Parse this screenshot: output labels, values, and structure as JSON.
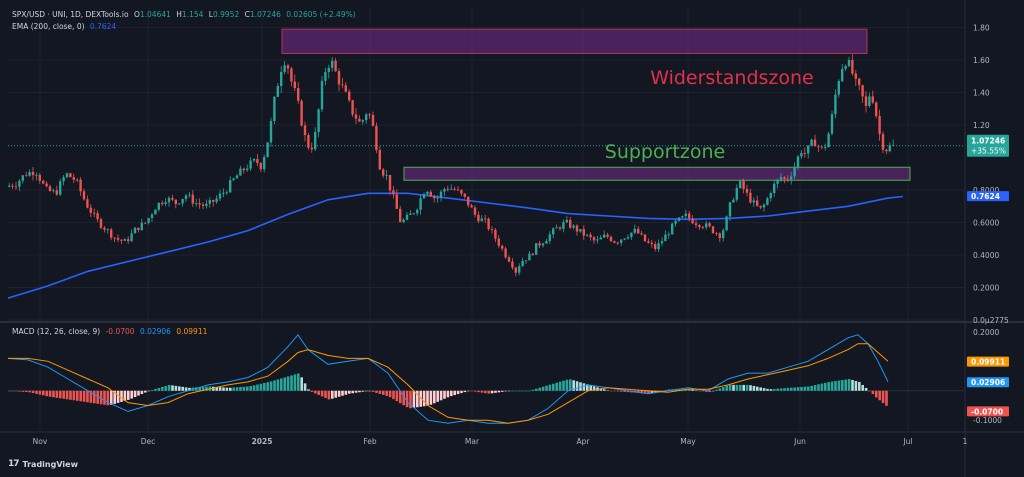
{
  "header": {
    "symbol": "SPX/USD · UNI, 1D, DEXTools.io",
    "ohlc": {
      "o_label": "O",
      "o": "1.04641",
      "h_label": "H",
      "h": "1.154",
      "l_label": "L",
      "l": "0.9952",
      "c_label": "C",
      "c": "1.07246",
      "change": "0.02605 (+2.49%)"
    },
    "ema_label": "EMA (200, close, 0)",
    "ema_value": "0.7624"
  },
  "macd_legend": {
    "label": "MACD (12, 26, close, 9)",
    "hist": "-0.0700",
    "macd": "0.02906",
    "signal": "0.09911"
  },
  "brand": {
    "name": "TradingView",
    "mark": "17"
  },
  "colors": {
    "bg": "#131722",
    "up": "#26a69a",
    "down": "#ef5350",
    "ema": "#2962ff",
    "macd": "#2196f3",
    "signal": "#ff9800",
    "resistance": "#b2325a",
    "support": "#4caf50",
    "zone_fill": "#7a2d8c"
  },
  "chart_data": {
    "type": "candlestick",
    "title": "",
    "price_axis": {
      "ticks": [
        "1.80",
        "1.60",
        "1.40",
        "1.20",
        "0.8000",
        "0.6000",
        "0.4000",
        "0.2000",
        "0.0µ2775"
      ],
      "range": [
        0.0,
        1.92
      ]
    },
    "time_axis": {
      "ticks": [
        "Nov",
        "Dec",
        "2025",
        "Feb",
        "Mar",
        "Apr",
        "May",
        "Jun",
        "Jul",
        "1"
      ]
    },
    "last_price": "1.07246",
    "last_change_pct": "+35.55%",
    "ema200_last": "0.7624",
    "ema200_path": [
      [
        0,
        0.135
      ],
      [
        40,
        0.21
      ],
      [
        80,
        0.3
      ],
      [
        120,
        0.36
      ],
      [
        160,
        0.42
      ],
      [
        200,
        0.48
      ],
      [
        240,
        0.55
      ],
      [
        280,
        0.65
      ],
      [
        320,
        0.74
      ],
      [
        360,
        0.78
      ],
      [
        400,
        0.78
      ],
      [
        440,
        0.75
      ],
      [
        480,
        0.72
      ],
      [
        520,
        0.69
      ],
      [
        560,
        0.655
      ],
      [
        600,
        0.64
      ],
      [
        640,
        0.625
      ],
      [
        680,
        0.62
      ],
      [
        720,
        0.625
      ],
      [
        760,
        0.64
      ],
      [
        800,
        0.67
      ],
      [
        840,
        0.7
      ],
      [
        880,
        0.75
      ],
      [
        895,
        0.76
      ]
    ],
    "candle_path": [
      [
        0,
        0.82
      ],
      [
        10,
        0.84
      ],
      [
        20,
        0.9
      ],
      [
        30,
        0.92
      ],
      [
        40,
        0.8
      ],
      [
        50,
        0.78
      ],
      [
        60,
        0.9
      ],
      [
        70,
        0.86
      ],
      [
        80,
        0.72
      ],
      [
        90,
        0.62
      ],
      [
        100,
        0.56
      ],
      [
        110,
        0.5
      ],
      [
        120,
        0.48
      ],
      [
        130,
        0.56
      ],
      [
        140,
        0.6
      ],
      [
        150,
        0.7
      ],
      [
        160,
        0.75
      ],
      [
        170,
        0.72
      ],
      [
        180,
        0.77
      ],
      [
        190,
        0.72
      ],
      [
        200,
        0.7
      ],
      [
        210,
        0.74
      ],
      [
        220,
        0.8
      ],
      [
        230,
        0.88
      ],
      [
        240,
        0.94
      ],
      [
        250,
        0.98
      ],
      [
        255,
        0.95
      ],
      [
        260,
        1.05
      ],
      [
        265,
        1.2
      ],
      [
        270,
        1.4
      ],
      [
        275,
        1.55
      ],
      [
        280,
        1.62
      ],
      [
        285,
        1.48
      ],
      [
        290,
        1.38
      ],
      [
        295,
        1.25
      ],
      [
        300,
        1.1
      ],
      [
        305,
        1.05
      ],
      [
        310,
        1.15
      ],
      [
        315,
        1.4
      ],
      [
        320,
        1.55
      ],
      [
        325,
        1.6
      ],
      [
        330,
        1.52
      ],
      [
        335,
        1.45
      ],
      [
        340,
        1.38
      ],
      [
        345,
        1.3
      ],
      [
        350,
        1.25
      ],
      [
        355,
        1.2
      ],
      [
        360,
        1.28
      ],
      [
        365,
        1.25
      ],
      [
        370,
        1.1
      ],
      [
        375,
        0.92
      ],
      [
        380,
        0.9
      ],
      [
        385,
        0.8
      ],
      [
        390,
        0.7
      ],
      [
        395,
        0.6
      ],
      [
        400,
        0.62
      ],
      [
        410,
        0.68
      ],
      [
        420,
        0.82
      ],
      [
        430,
        0.74
      ],
      [
        440,
        0.82
      ],
      [
        450,
        0.8
      ],
      [
        460,
        0.74
      ],
      [
        470,
        0.64
      ],
      [
        480,
        0.6
      ],
      [
        490,
        0.5
      ],
      [
        500,
        0.4
      ],
      [
        505,
        0.36
      ],
      [
        510,
        0.3
      ],
      [
        515,
        0.36
      ],
      [
        520,
        0.38
      ],
      [
        525,
        0.4
      ],
      [
        530,
        0.45
      ],
      [
        540,
        0.5
      ],
      [
        550,
        0.56
      ],
      [
        560,
        0.6
      ],
      [
        570,
        0.56
      ],
      [
        580,
        0.52
      ],
      [
        590,
        0.48
      ],
      [
        600,
        0.52
      ],
      [
        610,
        0.48
      ],
      [
        620,
        0.52
      ],
      [
        630,
        0.55
      ],
      [
        640,
        0.48
      ],
      [
        650,
        0.44
      ],
      [
        660,
        0.52
      ],
      [
        670,
        0.6
      ],
      [
        680,
        0.64
      ],
      [
        690,
        0.6
      ],
      [
        700,
        0.58
      ],
      [
        710,
        0.54
      ],
      [
        715,
        0.52
      ],
      [
        720,
        0.6
      ],
      [
        725,
        0.72
      ],
      [
        730,
        0.8
      ],
      [
        735,
        0.84
      ],
      [
        740,
        0.78
      ],
      [
        745,
        0.74
      ],
      [
        750,
        0.7
      ],
      [
        755,
        0.68
      ],
      [
        760,
        0.72
      ],
      [
        765,
        0.8
      ],
      [
        770,
        0.84
      ],
      [
        775,
        0.88
      ],
      [
        780,
        0.86
      ],
      [
        785,
        0.9
      ],
      [
        790,
        0.96
      ],
      [
        795,
        1.05
      ],
      [
        800,
        1.02
      ],
      [
        805,
        1.08
      ],
      [
        810,
        1.1
      ],
      [
        815,
        1.04
      ],
      [
        820,
        1.08
      ],
      [
        825,
        1.2
      ],
      [
        830,
        1.4
      ],
      [
        835,
        1.55
      ],
      [
        840,
        1.6
      ],
      [
        845,
        1.55
      ],
      [
        850,
        1.45
      ],
      [
        855,
        1.4
      ],
      [
        860,
        1.3
      ],
      [
        865,
        1.42
      ],
      [
        870,
        1.28
      ],
      [
        875,
        1.1
      ],
      [
        880,
        1.05
      ],
      [
        885,
        1.07
      ]
    ],
    "annotations": [
      {
        "text": "Widerstandszone",
        "type": "resistance",
        "price_range": [
          1.64,
          1.79
        ]
      },
      {
        "text": "Supportzone",
        "type": "support",
        "price_range": [
          0.86,
          0.94
        ]
      }
    ],
    "macd": {
      "axis_ticks": [
        "0.2000",
        "-0.1000"
      ],
      "range": [
        -0.14,
        0.22
      ],
      "hist_last": "-0.0700",
      "macd_last": "0.02906",
      "signal_last": "0.09911",
      "macd_path": [
        [
          0,
          0.11
        ],
        [
          20,
          0.105
        ],
        [
          40,
          0.08
        ],
        [
          60,
          0.04
        ],
        [
          80,
          0.0
        ],
        [
          100,
          -0.04
        ],
        [
          120,
          -0.07
        ],
        [
          140,
          -0.05
        ],
        [
          160,
          -0.02
        ],
        [
          180,
          0.0
        ],
        [
          200,
          0.02
        ],
        [
          220,
          0.03
        ],
        [
          240,
          0.045
        ],
        [
          260,
          0.08
        ],
        [
          280,
          0.15
        ],
        [
          290,
          0.19
        ],
        [
          300,
          0.14
        ],
        [
          320,
          0.09
        ],
        [
          340,
          0.1
        ],
        [
          360,
          0.11
        ],
        [
          380,
          0.06
        ],
        [
          400,
          -0.04
        ],
        [
          420,
          -0.1
        ],
        [
          440,
          -0.11
        ],
        [
          460,
          -0.1
        ],
        [
          480,
          -0.11
        ],
        [
          500,
          -0.11
        ],
        [
          520,
          -0.1
        ],
        [
          540,
          -0.06
        ],
        [
          560,
          0.0
        ],
        [
          580,
          0.02
        ],
        [
          600,
          0.01
        ],
        [
          620,
          0.0
        ],
        [
          640,
          -0.01
        ],
        [
          660,
          0.0
        ],
        [
          680,
          0.01
        ],
        [
          700,
          0.0
        ],
        [
          720,
          0.04
        ],
        [
          740,
          0.06
        ],
        [
          760,
          0.06
        ],
        [
          780,
          0.08
        ],
        [
          800,
          0.1
        ],
        [
          820,
          0.14
        ],
        [
          840,
          0.18
        ],
        [
          850,
          0.19
        ],
        [
          860,
          0.16
        ],
        [
          870,
          0.1
        ],
        [
          880,
          0.03
        ]
      ],
      "signal_path": [
        [
          0,
          0.11
        ],
        [
          20,
          0.11
        ],
        [
          40,
          0.1
        ],
        [
          60,
          0.07
        ],
        [
          80,
          0.04
        ],
        [
          100,
          0.01
        ],
        [
          120,
          -0.04
        ],
        [
          140,
          -0.05
        ],
        [
          160,
          -0.04
        ],
        [
          180,
          -0.01
        ],
        [
          200,
          0.005
        ],
        [
          220,
          0.02
        ],
        [
          240,
          0.03
        ],
        [
          260,
          0.05
        ],
        [
          280,
          0.1
        ],
        [
          290,
          0.13
        ],
        [
          300,
          0.14
        ],
        [
          320,
          0.12
        ],
        [
          340,
          0.11
        ],
        [
          360,
          0.11
        ],
        [
          380,
          0.08
        ],
        [
          400,
          0.02
        ],
        [
          420,
          -0.05
        ],
        [
          440,
          -0.09
        ],
        [
          460,
          -0.1
        ],
        [
          480,
          -0.1
        ],
        [
          500,
          -0.11
        ],
        [
          520,
          -0.1
        ],
        [
          540,
          -0.08
        ],
        [
          560,
          -0.04
        ],
        [
          580,
          0.0
        ],
        [
          600,
          0.01
        ],
        [
          620,
          0.005
        ],
        [
          640,
          0.0
        ],
        [
          660,
          -0.005
        ],
        [
          680,
          0.005
        ],
        [
          700,
          0.005
        ],
        [
          720,
          0.02
        ],
        [
          740,
          0.04
        ],
        [
          760,
          0.055
        ],
        [
          780,
          0.07
        ],
        [
          800,
          0.085
        ],
        [
          820,
          0.11
        ],
        [
          840,
          0.14
        ],
        [
          850,
          0.16
        ],
        [
          860,
          0.16
        ],
        [
          870,
          0.13
        ],
        [
          880,
          0.1
        ]
      ]
    }
  }
}
